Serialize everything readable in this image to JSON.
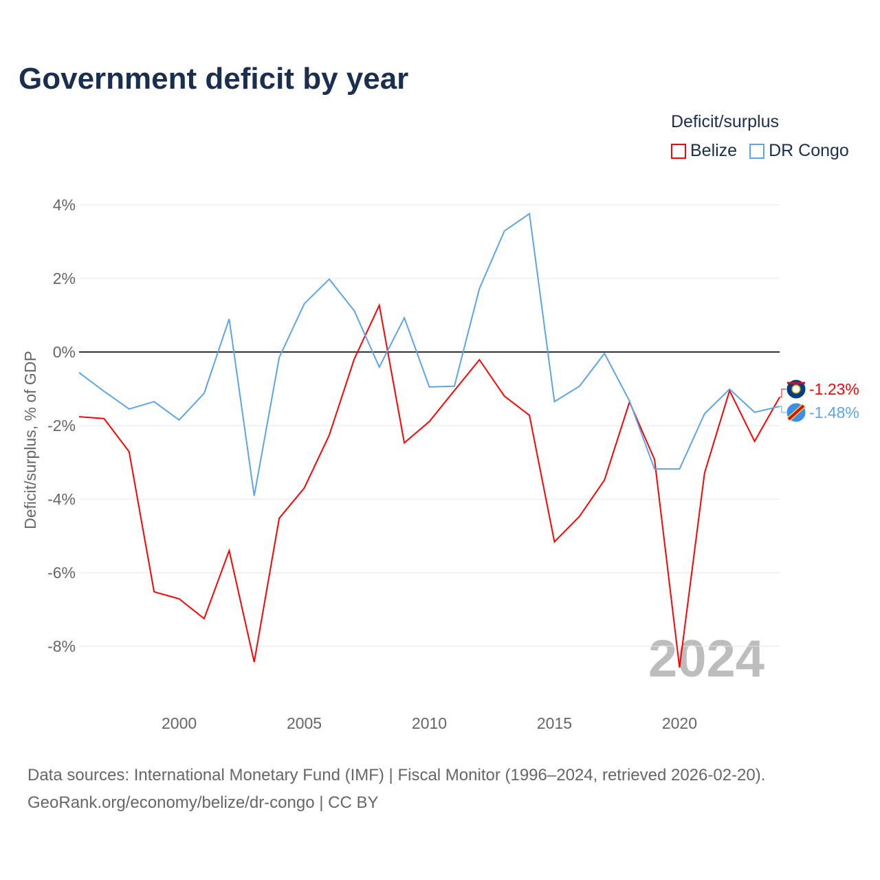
{
  "title": "Government deficit by year",
  "legend": {
    "title": "Deficit/surplus",
    "items": [
      {
        "label": "Belize",
        "color": "#ff0000"
      },
      {
        "label": "DR Congo",
        "color": "#5ba4ea"
      }
    ]
  },
  "source": {
    "line1": "Data sources: International Monetary Fund (IMF) | Fiscal Monitor (1996–2024, retrieved 2026-02-20).",
    "line2": "GeoRank.org/economy/belize/dr-congo | CC BY"
  },
  "chart_data": {
    "type": "line",
    "title": "Government deficit by year",
    "xlabel": "",
    "ylabel": "Deficit/surplus, % of GDP",
    "watermark": "2024",
    "x": [
      1996,
      1997,
      1998,
      1999,
      2000,
      2001,
      2002,
      2003,
      2004,
      2005,
      2006,
      2007,
      2008,
      2009,
      2010,
      2011,
      2012,
      2013,
      2014,
      2015,
      2016,
      2017,
      2018,
      2019,
      2020,
      2021,
      2022,
      2023,
      2024
    ],
    "xlim": [
      1996,
      2024
    ],
    "ylim": [
      -9.5,
      4.3
    ],
    "xticks": [
      {
        "v": 2000,
        "label": "2000"
      },
      {
        "v": 2005,
        "label": "2005"
      },
      {
        "v": 2010,
        "label": "2010"
      },
      {
        "v": 2015,
        "label": "2015"
      },
      {
        "v": 2020,
        "label": "2020"
      }
    ],
    "yticks": [
      {
        "v": 4,
        "label": "4%"
      },
      {
        "v": 2,
        "label": "2%"
      },
      {
        "v": 0,
        "label": "0%"
      },
      {
        "v": -2,
        "label": "-2%"
      },
      {
        "v": -4,
        "label": "-4%"
      },
      {
        "v": -6,
        "label": "-6%"
      },
      {
        "v": -8,
        "label": "-8%"
      }
    ],
    "grid": true,
    "series": [
      {
        "name": "Belize",
        "color": "#ff0000",
        "end_label": "-1.23%",
        "values": [
          -1.76,
          -1.81,
          -2.71,
          -6.52,
          -6.71,
          -7.25,
          -5.4,
          -8.43,
          -4.52,
          -3.7,
          -2.26,
          -0.19,
          1.27,
          -2.47,
          -1.89,
          -1.05,
          -0.21,
          -1.2,
          -1.72,
          -5.16,
          -4.47,
          -3.48,
          -1.36,
          -2.92,
          -8.58,
          -3.29,
          -1.05,
          -2.43,
          -1.23
        ]
      },
      {
        "name": "DR Congo",
        "color": "#5ba4ea",
        "end_label": "-1.48%",
        "values": [
          -0.56,
          -1.07,
          -1.55,
          -1.35,
          -1.85,
          -1.12,
          0.9,
          -3.91,
          -0.15,
          1.31,
          1.98,
          1.12,
          -0.41,
          0.93,
          -0.95,
          -0.93,
          1.72,
          3.29,
          3.76,
          -1.35,
          -0.93,
          -0.04,
          -1.33,
          -3.18,
          -3.18,
          -1.68,
          -1.01,
          -1.64,
          -1.48
        ]
      }
    ]
  }
}
